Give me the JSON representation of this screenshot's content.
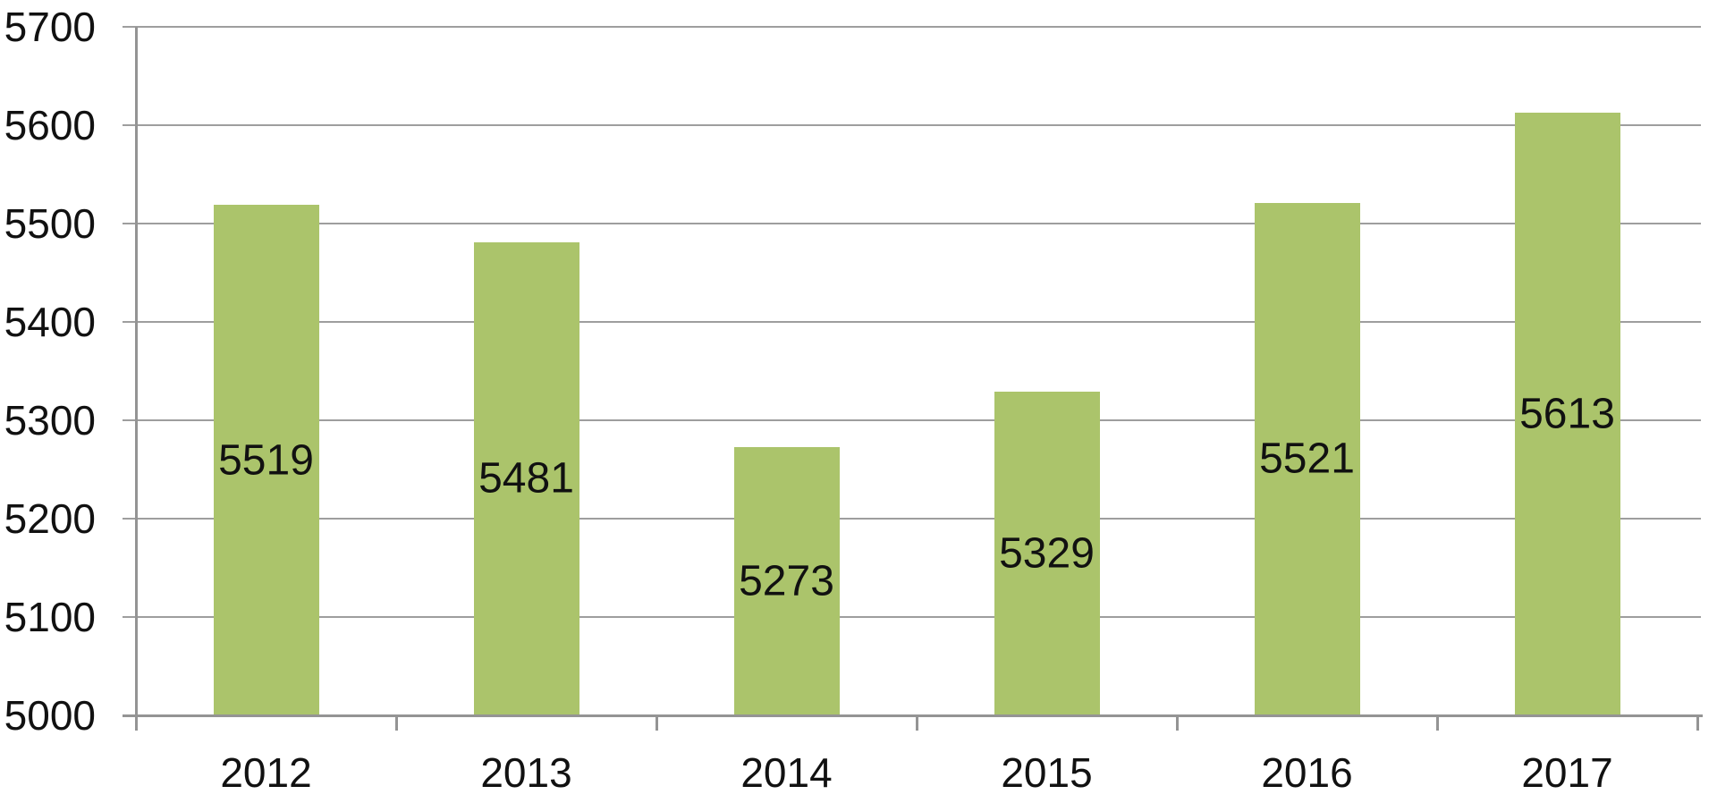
{
  "chart_data": {
    "type": "bar",
    "title": "",
    "xlabel": "",
    "ylabel": "",
    "categories": [
      "2012",
      "2013",
      "2014",
      "2015",
      "2016",
      "2017"
    ],
    "values": [
      5519,
      5481,
      5273,
      5329,
      5521,
      5613
    ],
    "series_name": "",
    "ylim": [
      5000,
      5700
    ],
    "ytick_step": 100,
    "yticks": [
      "5700",
      "5600",
      "5500",
      "5400",
      "5300",
      "5200",
      "5100",
      "5000"
    ],
    "grid": true,
    "legend": false,
    "data_labels": "inside-center",
    "colors": {
      "bar_fill": "#abc46b",
      "gridline": "#9e9e9e",
      "axis": "#949494",
      "text": "#111111",
      "background": "#ffffff"
    }
  }
}
